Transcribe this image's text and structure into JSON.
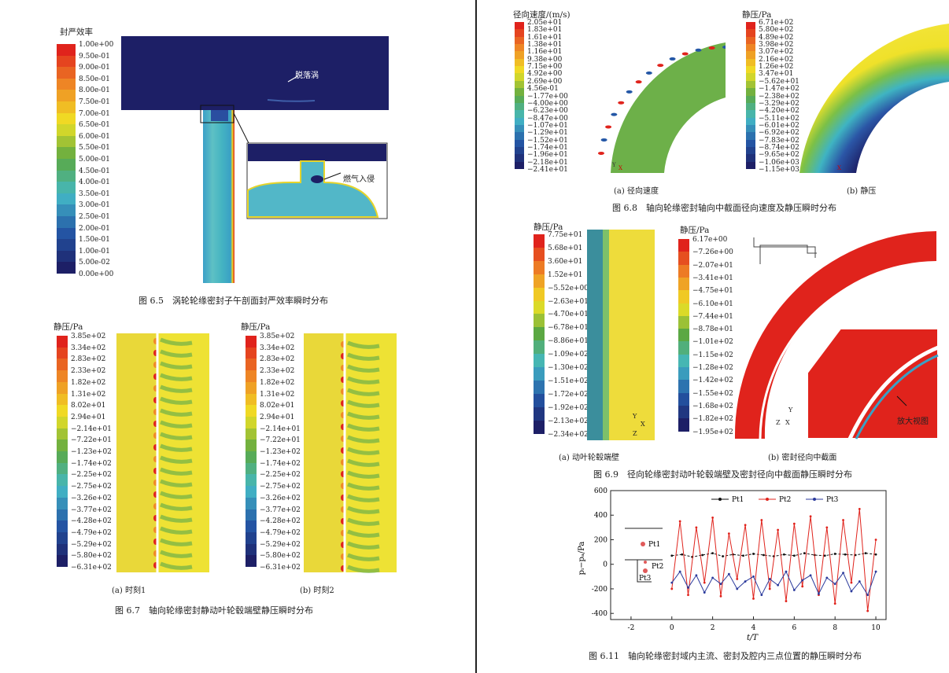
{
  "colors": {
    "red": "#e0231c",
    "orange": "#ef8a25",
    "yellow": "#f0e224",
    "green": "#5ba843",
    "cyan": "#43b8c6",
    "blue": "#2457a6",
    "navy": "#1d1f66"
  },
  "fig65": {
    "cb_title": "封严效率",
    "cb_labels": [
      "1.00e+00",
      "9.50e-01",
      "9.00e-01",
      "8.50e-01",
      "8.00e-01",
      "7.50e-01",
      "7.00e-01",
      "6.50e-01",
      "6.00e-01",
      "5.50e-01",
      "5.00e-01",
      "4.50e-01",
      "4.00e-01",
      "3.50e-01",
      "3.00e-01",
      "2.50e-01",
      "2.00e-01",
      "1.50e-01",
      "1.00e-01",
      "5.00e-02",
      "0.00e+00"
    ],
    "annot_vortex": "脱落涡",
    "annot_ingress": "燃气入侵",
    "caption": "图 6.5　涡轮轮缘密封子午剖面封严效率瞬时分布"
  },
  "fig67": {
    "cb_title": "静压/Pa",
    "cb_labels": [
      "3.85e+02",
      "3.34e+02",
      "2.83e+02",
      "2.33e+02",
      "1.82e+02",
      "1.31e+02",
      "8.02e+01",
      "2.94e+01",
      "−2.14e+01",
      "−7.22e+01",
      "−1.23e+02",
      "−1.74e+02",
      "−2.25e+02",
      "−2.75e+02",
      "−3.26e+02",
      "−3.77e+02",
      "−4.28e+02",
      "−4.79e+02",
      "−5.29e+02",
      "−5.80e+02",
      "−6.31e+02"
    ],
    "sub_a": "(a) 时刻1",
    "sub_b": "(b) 时刻2",
    "caption": "图 6.7　轴向轮缘密封静动叶轮毂端壁静压瞬时分布"
  },
  "fig68": {
    "cb_a_title": "径向速度/(m/s)",
    "cb_a_labels": [
      "2.05e+01",
      "1.83e+01",
      "1.61e+01",
      "1.38e+01",
      "1.16e+01",
      "9.38e+00",
      "7.15e+00",
      "4.92e+00",
      "2.69e+00",
      "4.56e-01",
      "−1.77e+00",
      "−4.00e+00",
      "−6.23e+00",
      "−8.47e+00",
      "−1.07e+01",
      "−1.29e+01",
      "−1.52e+01",
      "−1.74e+01",
      "−1.96e+01",
      "−2.18e+01",
      "−2.41e+01"
    ],
    "cb_b_title": "静压/Pa",
    "cb_b_labels": [
      "6.71e+02",
      "5.80e+02",
      "4.89e+02",
      "3.98e+02",
      "3.07e+02",
      "2.16e+02",
      "1.26e+02",
      "3.47e+01",
      "−5.62e+01",
      "−1.47e+02",
      "−2.38e+02",
      "−3.29e+02",
      "−4.20e+02",
      "−5.11e+02",
      "−6.01e+02",
      "−6.92e+02",
      "−7.83e+02",
      "−8.74e+02",
      "−9.65e+02",
      "−1.06e+03",
      "−1.15e+03"
    ],
    "sub_a": "(a) 径向速度",
    "sub_b": "(b) 静压",
    "caption": "图 6.8　轴向轮缘密封轴向中截面径向速度及静压瞬时分布"
  },
  "fig69": {
    "cb_a_title": "静压/Pa",
    "cb_a_labels": [
      "7.75e+01",
      "5.68e+01",
      "3.60e+01",
      "1.52e+01",
      "−5.52e+00",
      "−2.63e+01",
      "−4.70e+01",
      "−6.78e+01",
      "−8.86e+01",
      "−1.09e+02",
      "−1.30e+02",
      "−1.51e+02",
      "−1.72e+02",
      "−1.92e+02",
      "−2.13e+02",
      "−2.34e+02"
    ],
    "cb_b_title": "静压/Pa",
    "cb_b_labels": [
      "6.17e+00",
      "−7.26e+00",
      "−2.07e+01",
      "−3.41e+01",
      "−4.75e+01",
      "−6.10e+01",
      "−7.44e+01",
      "−8.78e+01",
      "−1.01e+02",
      "−1.15e+02",
      "−1.28e+02",
      "−1.42e+02",
      "−1.55e+02",
      "−1.68e+02",
      "−1.82e+02",
      "−1.95e+02"
    ],
    "zoom_label": "放大视图",
    "sub_a": "(a) 动叶轮毂端壁",
    "sub_b": "(b) 密封径向中截面",
    "caption": "图 6.9　径向轮缘密封动叶轮毂端壁及密封径向中截面静压瞬时分布"
  },
  "fig611": {
    "caption": "图 6.11　轴向轮缘密封域内主流、密封及腔内三点位置的静压瞬时分布",
    "inset_labels": [
      "Pt1",
      "Pt2",
      "Pt3"
    ]
  },
  "axis_letters": {
    "y": "Y",
    "x": "X",
    "z": "Z"
  },
  "chart_data": {
    "type": "line",
    "xlabel": "t/T",
    "ylabel": "pᵢ−pₐ/Pa",
    "xlim": [
      -3,
      10.5
    ],
    "ylim": [
      -450,
      600
    ],
    "xticks": [
      -2,
      0,
      2,
      4,
      6,
      8,
      10
    ],
    "yticks": [
      -400,
      -200,
      0,
      200,
      400,
      600
    ],
    "legend_position": "top-right",
    "grid": false,
    "series": [
      {
        "name": "Pt1",
        "color": "#111111",
        "x": [
          0,
          0.5,
          1,
          1.5,
          2,
          2.5,
          3,
          3.5,
          4,
          4.5,
          5,
          5.5,
          6,
          6.5,
          7,
          7.5,
          8,
          8.5,
          9,
          9.5,
          10
        ],
        "values": [
          70,
          80,
          60,
          75,
          90,
          65,
          80,
          70,
          85,
          75,
          65,
          80,
          70,
          90,
          75,
          70,
          85,
          80,
          75,
          90,
          80
        ]
      },
      {
        "name": "Pt2",
        "color": "#e0231c",
        "x": [
          0,
          0.4,
          0.8,
          1.2,
          1.6,
          2,
          2.4,
          2.8,
          3.2,
          3.6,
          4,
          4.4,
          4.8,
          5.2,
          5.6,
          6,
          6.4,
          6.8,
          7.2,
          7.6,
          8,
          8.4,
          8.8,
          9.2,
          9.6,
          10
        ],
        "values": [
          -200,
          350,
          -250,
          300,
          -150,
          380,
          -260,
          250,
          -120,
          320,
          -280,
          360,
          -200,
          280,
          -300,
          330,
          -180,
          390,
          -250,
          300,
          -320,
          360,
          -150,
          450,
          -380,
          200
        ]
      },
      {
        "name": "Pt3",
        "color": "#2b3a9c",
        "x": [
          0,
          0.4,
          0.8,
          1.2,
          1.6,
          2,
          2.4,
          2.8,
          3.2,
          3.6,
          4,
          4.4,
          4.8,
          5.2,
          5.6,
          6,
          6.4,
          6.8,
          7.2,
          7.6,
          8,
          8.4,
          8.8,
          9.2,
          9.6,
          10
        ],
        "values": [
          -150,
          -60,
          -190,
          -90,
          -230,
          -110,
          -160,
          -80,
          -200,
          -140,
          -100,
          -250,
          -120,
          -170,
          -60,
          -210,
          -130,
          -90,
          -240,
          -110,
          -160,
          -70,
          -220,
          -140,
          -250,
          -60
        ]
      }
    ]
  }
}
